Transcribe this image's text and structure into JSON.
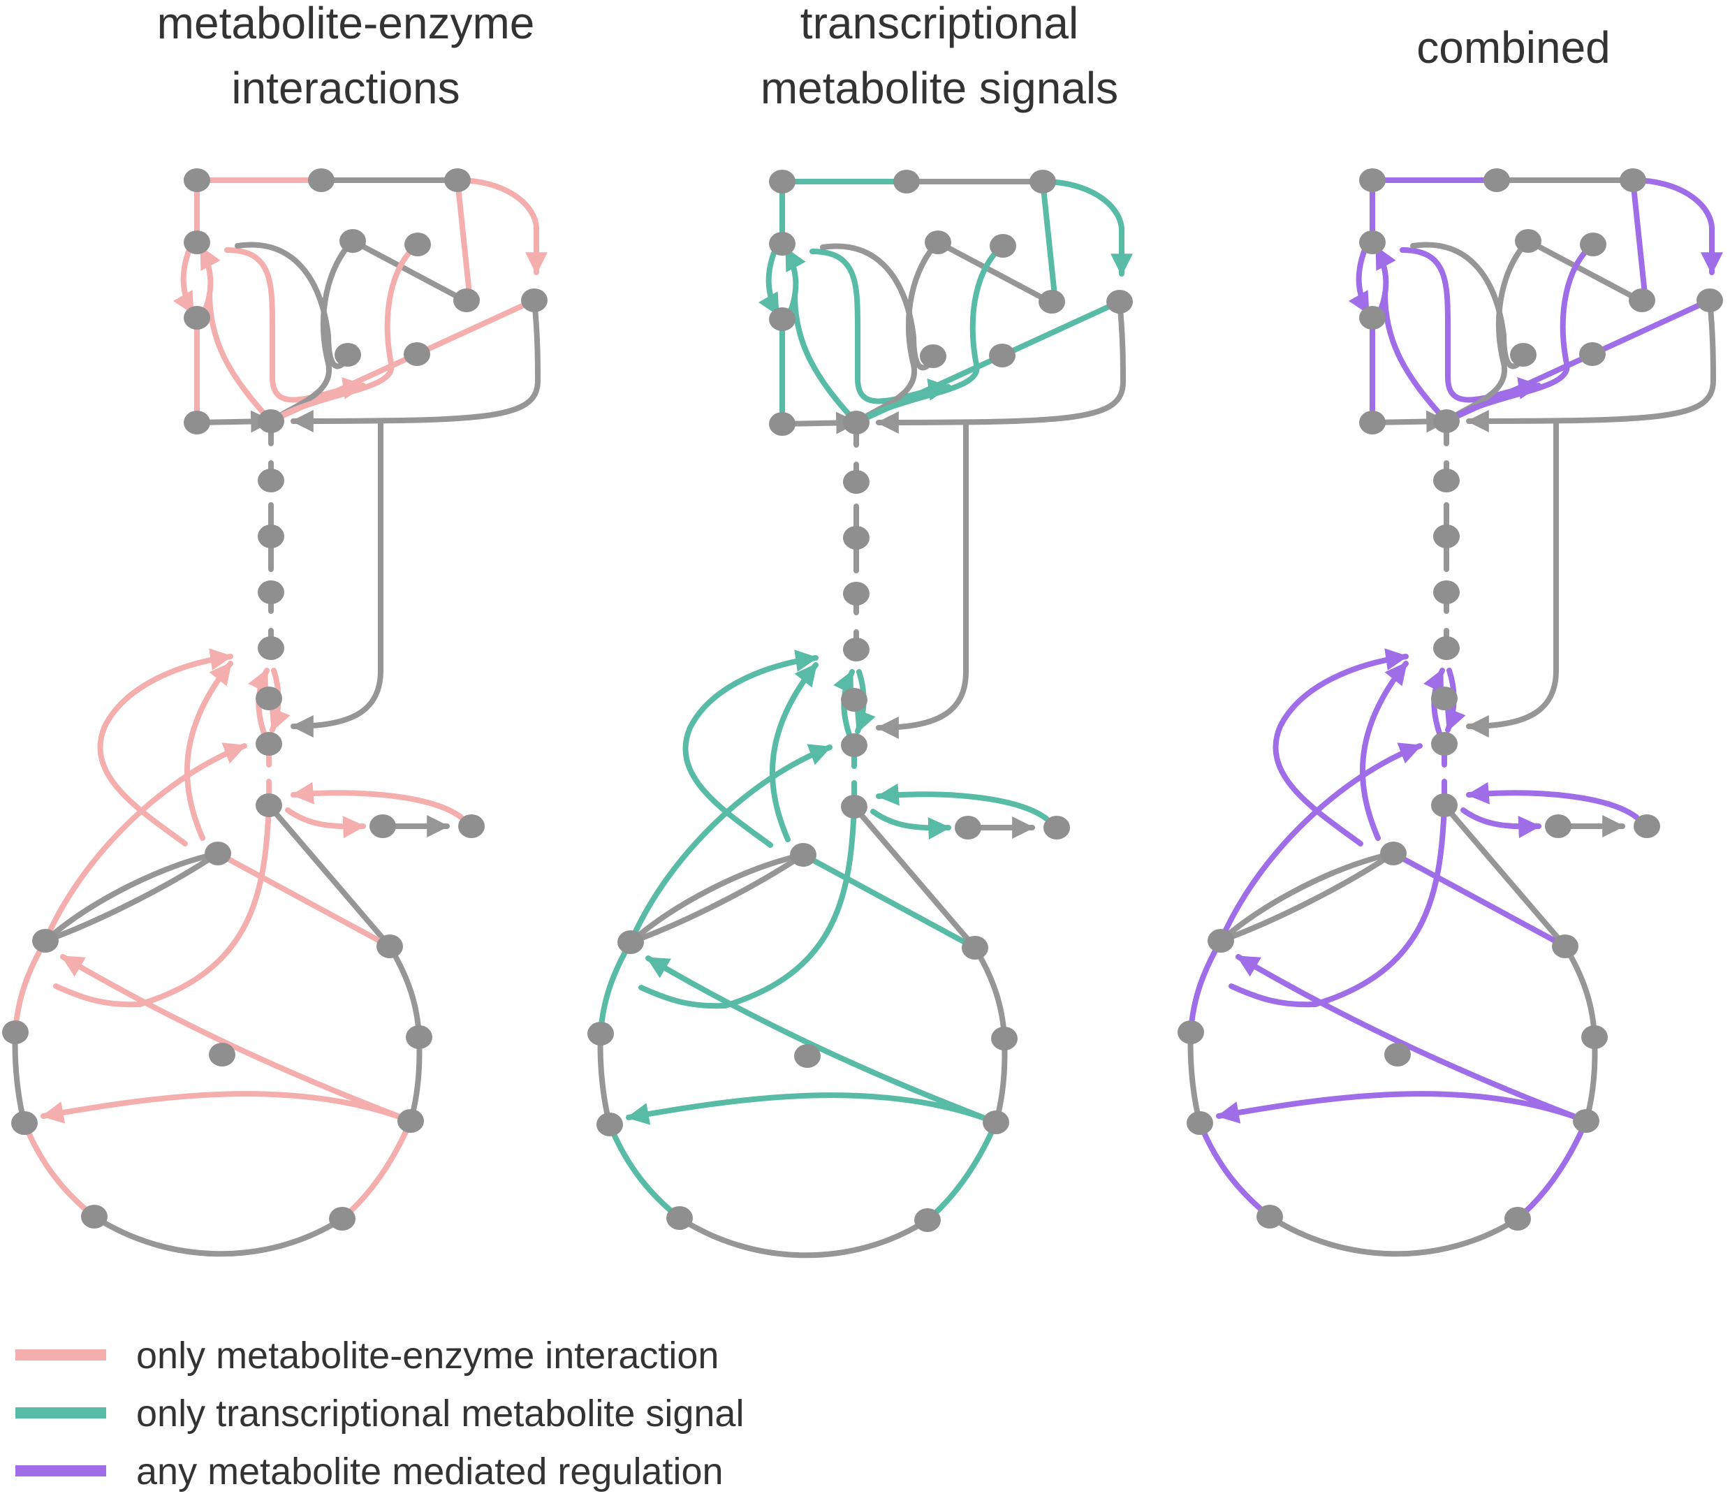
{
  "colors": {
    "gray": "#969696",
    "node": "#8f8f8f",
    "metabolite_enzyme": "#f4aeae",
    "transcriptional": "#58bba6",
    "combined": "#a06de8"
  },
  "panels": [
    {
      "key": "metabolite_enzyme",
      "title_lines": [
        "metabolite-enzyme",
        "interactions"
      ]
    },
    {
      "key": "transcriptional",
      "title_lines": [
        "transcriptional",
        "metabolite signals"
      ]
    },
    {
      "key": "combined",
      "title_lines": [
        "combined"
      ]
    }
  ],
  "legend": [
    {
      "label": "only metabolite-enzyme interaction",
      "color_key": "metabolite_enzyme"
    },
    {
      "label": "only transcriptional metabolite signal",
      "color_key": "transcriptional"
    },
    {
      "label": "any metabolite mediated regulation",
      "color_key": "combined"
    }
  ]
}
